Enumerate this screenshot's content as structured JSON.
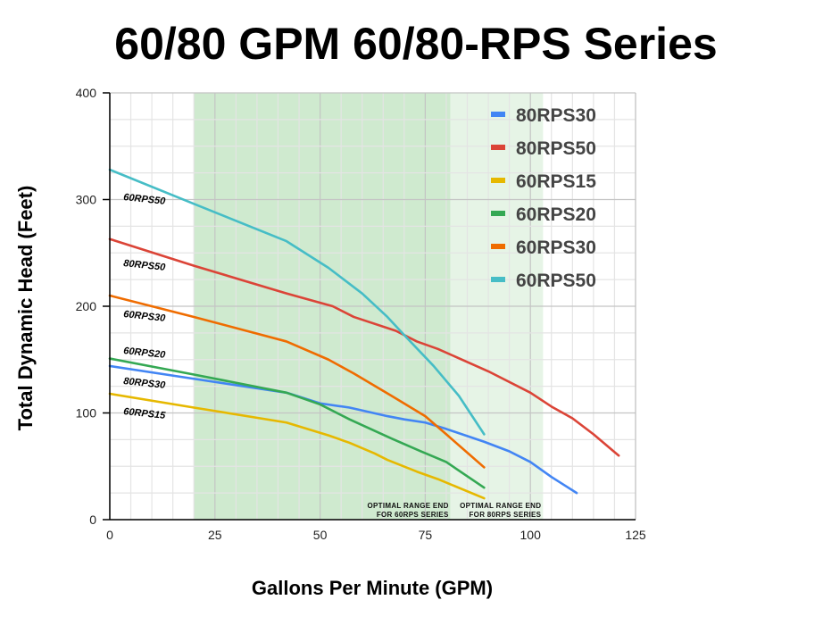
{
  "chart_data": {
    "type": "line",
    "title": "60/80 GPM 60/80-RPS Series",
    "xlabel": "Gallons Per Minute (GPM)",
    "ylabel": "Total Dynamic Head (Feet)",
    "xlim": [
      0,
      125
    ],
    "ylim": [
      0,
      400
    ],
    "x_ticks": [
      0,
      25,
      50,
      75,
      100,
      125
    ],
    "y_ticks": [
      0,
      100,
      200,
      300,
      400
    ],
    "x_minor_step": 5,
    "y_minor_step": 25,
    "grid": true,
    "legend_placement": "top-right",
    "bands": [
      {
        "from": 20,
        "to": 81,
        "color": "#cfeacf",
        "annotation": [
          "OPTIMAL RANGE END",
          "FOR 60RPS SERIES"
        ]
      },
      {
        "from": 81,
        "to": 103,
        "color": "#e6f4e6",
        "annotation": [
          "OPTIMAL RANGE END",
          "FOR 80RPS SERIES"
        ]
      }
    ],
    "series": [
      {
        "name": "80RPS30",
        "color": "#4285f4",
        "points": [
          [
            0,
            144
          ],
          [
            20,
            132
          ],
          [
            42,
            119
          ],
          [
            50,
            109
          ],
          [
            57,
            105
          ],
          [
            66,
            97
          ],
          [
            70,
            94
          ],
          [
            75,
            91
          ],
          [
            80,
            85
          ],
          [
            89,
            73
          ],
          [
            95,
            64
          ],
          [
            100,
            54
          ],
          [
            105,
            40
          ],
          [
            111,
            25
          ]
        ]
      },
      {
        "name": "80RPS50",
        "color": "#db4437",
        "points": [
          [
            0,
            263
          ],
          [
            20,
            238
          ],
          [
            42,
            212
          ],
          [
            53,
            200
          ],
          [
            58,
            190
          ],
          [
            68,
            177
          ],
          [
            73,
            167
          ],
          [
            78,
            160
          ],
          [
            90,
            139
          ],
          [
            100,
            119
          ],
          [
            105,
            106
          ],
          [
            110,
            95
          ],
          [
            115,
            80
          ],
          [
            121,
            60
          ]
        ]
      },
      {
        "name": "60RPS15",
        "color": "#e6b800",
        "points": [
          [
            0,
            118
          ],
          [
            20,
            105
          ],
          [
            42,
            91
          ],
          [
            52,
            79
          ],
          [
            57,
            72
          ],
          [
            63,
            62
          ],
          [
            66,
            56
          ],
          [
            73,
            45
          ],
          [
            78,
            38
          ],
          [
            89,
            20
          ]
        ]
      },
      {
        "name": "60RPS20",
        "color": "#34a853",
        "points": [
          [
            0,
            151
          ],
          [
            20,
            136
          ],
          [
            42,
            119
          ],
          [
            50,
            108
          ],
          [
            57,
            94
          ],
          [
            67,
            76
          ],
          [
            74,
            64
          ],
          [
            80,
            54
          ],
          [
            89,
            30
          ]
        ]
      },
      {
        "name": "60RPS30",
        "color": "#ef6c00",
        "points": [
          [
            0,
            210
          ],
          [
            20,
            190
          ],
          [
            42,
            167
          ],
          [
            52,
            150
          ],
          [
            58,
            137
          ],
          [
            67,
            116
          ],
          [
            75,
            97
          ],
          [
            80,
            80
          ],
          [
            89,
            49
          ]
        ]
      },
      {
        "name": "60RPS50",
        "color": "#46bdc6",
        "points": [
          [
            0,
            328
          ],
          [
            20,
            296
          ],
          [
            42,
            261
          ],
          [
            52,
            236
          ],
          [
            60,
            212
          ],
          [
            66,
            190
          ],
          [
            70,
            173
          ],
          [
            77,
            144
          ],
          [
            83,
            116
          ],
          [
            89,
            80
          ]
        ]
      }
    ],
    "curve_labels": [
      "60RPS50",
      "80RPS50",
      "60RPS30",
      "60RPS20",
      "80RPS30",
      "60RPS15"
    ]
  }
}
